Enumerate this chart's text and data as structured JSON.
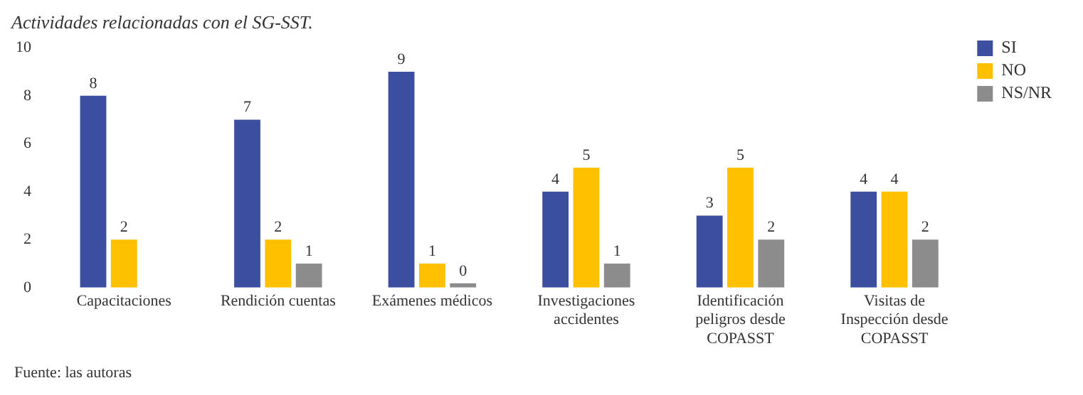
{
  "chart_data": {
    "type": "bar",
    "title": "Actividades relacionadas con el SG-SST.",
    "categories": [
      "Capacitaciones",
      "Rendición cuentas",
      "Exámenes médicos",
      "Investigaciones accidentes",
      "Identificación peligros desde COPASST",
      "Visitas de Inspección desde COPASST"
    ],
    "series": [
      {
        "name": "SI",
        "color": "#3b4ea0",
        "values": [
          8,
          7,
          9,
          4,
          3,
          4
        ]
      },
      {
        "name": "NO",
        "color": "#ffc000",
        "values": [
          2,
          2,
          1,
          5,
          5,
          4
        ]
      },
      {
        "name": "NS/NR",
        "color": "#8c8c8c",
        "values": [
          null,
          1,
          0,
          1,
          2,
          2
        ]
      }
    ],
    "ylim": [
      0,
      10
    ],
    "yticks": [
      0,
      2,
      4,
      6,
      8,
      10
    ],
    "grid": false,
    "legend": "top right",
    "data_labels": true,
    "annotations": [
      "Fuente: las autoras"
    ]
  }
}
